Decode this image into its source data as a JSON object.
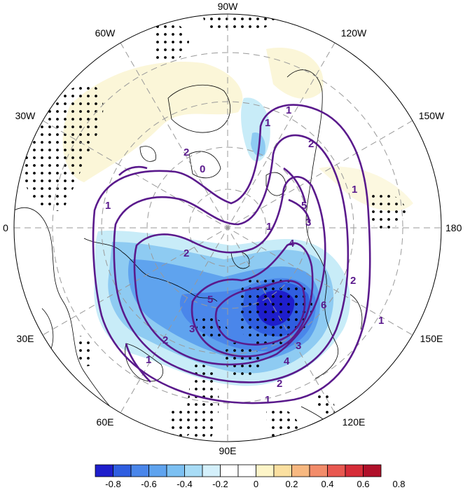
{
  "map": {
    "projection": "north-polar-stereographic",
    "longitude_labels": [
      "90W",
      "120W",
      "150W",
      "180",
      "150E",
      "120E",
      "90E",
      "60E",
      "30E",
      "0",
      "30W",
      "60W"
    ],
    "shading": {
      "description_colors": {
        "strong_negative": "#2a2ad8",
        "negative": "#4a8ee8",
        "weak_negative": "#8ecbf2",
        "very_weak_negative": "#c8ecf8",
        "weak_positive": "#fbf6d8"
      }
    },
    "contour_color": "#5a1a8c",
    "contour_labels": [
      "1",
      "1",
      "1",
      "1",
      "1",
      "1",
      "1",
      "1",
      "2",
      "2",
      "2",
      "2",
      "2",
      "2",
      "3",
      "3",
      "3",
      "4",
      "4",
      "5",
      "5",
      "6",
      "0"
    ]
  },
  "colorbar": {
    "tick_labels": [
      "-0.8",
      "-0.6",
      "-0.4",
      "-0.2",
      "0",
      "0.2",
      "0.4",
      "0.6",
      "0.8"
    ],
    "colors": [
      "#1e1ecc",
      "#2f5ee0",
      "#4a86ea",
      "#5fa3ee",
      "#7cc0f2",
      "#a8dcf6",
      "#d4f0fb",
      "#ffffff",
      "#ffffff",
      "#fdf5c8",
      "#fbe0a0",
      "#f7b880",
      "#f28c6a",
      "#e85850",
      "#d62c38",
      "#b0102a"
    ]
  }
}
